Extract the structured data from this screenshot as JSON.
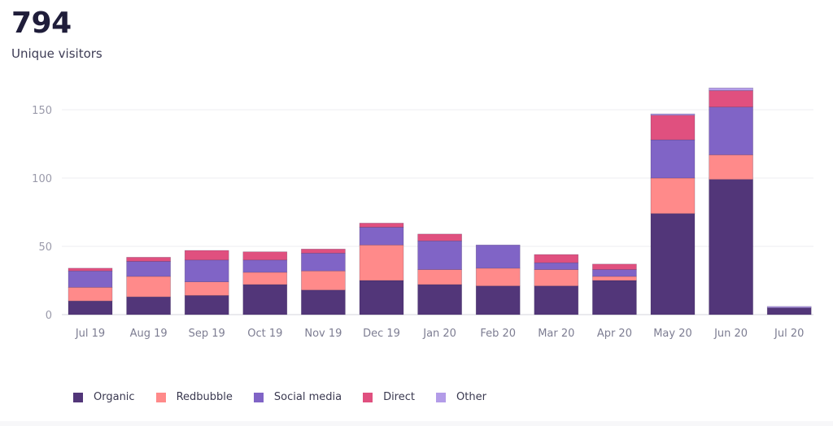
{
  "summary": {
    "total": "794",
    "label": "Unique visitors"
  },
  "chart_data": {
    "type": "bar",
    "stacked": true,
    "categories": [
      "Jul 19",
      "Aug 19",
      "Sep 19",
      "Oct 19",
      "Nov 19",
      "Dec 19",
      "Jan 20",
      "Feb 20",
      "Mar 20",
      "Apr 20",
      "May 20",
      "Jun 20",
      "Jul 20"
    ],
    "series": [
      {
        "name": "Organic",
        "color": "#523679",
        "values": [
          10,
          13,
          14,
          22,
          18,
          25,
          22,
          21,
          21,
          25,
          74,
          99,
          5
        ]
      },
      {
        "name": "Redbubble",
        "color": "#ff8a8a",
        "values": [
          10,
          15,
          10,
          9,
          14,
          26,
          11,
          13,
          12,
          3,
          26,
          18,
          0
        ]
      },
      {
        "name": "Social media",
        "color": "#8064c6",
        "values": [
          12,
          11,
          16,
          9,
          13,
          13,
          21,
          17,
          5,
          5,
          28,
          35,
          0
        ]
      },
      {
        "name": "Direct",
        "color": "#e0507f",
        "values": [
          2,
          3,
          7,
          6,
          3,
          3,
          5,
          0,
          6,
          4,
          18,
          12,
          0
        ]
      },
      {
        "name": "Other",
        "color": "#b39ce8",
        "values": [
          0,
          0,
          0,
          0,
          0,
          0,
          0,
          0,
          0,
          0,
          1,
          2,
          1
        ]
      }
    ],
    "yticks": [
      0,
      50,
      100,
      150
    ],
    "ylim": [
      0,
      175
    ],
    "grid": true,
    "legend_position": "bottom-left"
  }
}
